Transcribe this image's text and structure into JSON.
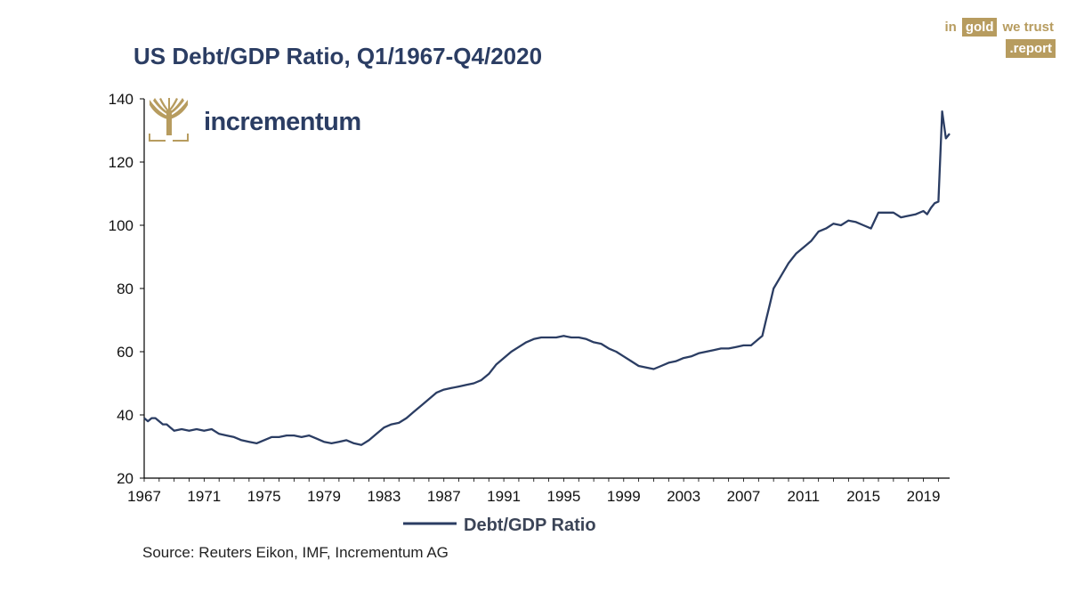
{
  "header": {
    "title": "US Debt/GDP Ratio, Q1/1967-Q4/2020"
  },
  "brand": {
    "word_in": "in",
    "word_gold": "gold",
    "word_we_trust": "we trust",
    "word_report": ".report",
    "color": "#b79c5f"
  },
  "logo": {
    "name": "incrementum",
    "icon": "tree-icon",
    "color": "#2b3d63",
    "icon_color": "#b79c5f"
  },
  "chart_data": {
    "type": "line",
    "title": "US Debt/GDP Ratio, Q1/1967-Q4/2020",
    "xlabel": "",
    "ylabel": "",
    "xlim": [
      1967,
      2020.75
    ],
    "ylim": [
      20,
      140
    ],
    "yticks": [
      20,
      40,
      60,
      80,
      100,
      120,
      140
    ],
    "xticks": [
      1967,
      1971,
      1975,
      1979,
      1983,
      1987,
      1991,
      1995,
      1999,
      2003,
      2007,
      2011,
      2015,
      2019
    ],
    "grid": false,
    "legend_position": "bottom-center",
    "series": [
      {
        "name": "Debt/GDP Ratio",
        "color": "#2b3d63",
        "x": [
          1967.0,
          1967.25,
          1967.5,
          1967.75,
          1968.0,
          1968.25,
          1968.5,
          1968.75,
          1969.0,
          1969.5,
          1970.0,
          1970.5,
          1971.0,
          1971.5,
          1972.0,
          1972.5,
          1973.0,
          1973.5,
          1974.0,
          1974.5,
          1975.0,
          1975.5,
          1976.0,
          1976.5,
          1977.0,
          1977.5,
          1978.0,
          1978.5,
          1979.0,
          1979.5,
          1980.0,
          1980.5,
          1981.0,
          1981.5,
          1982.0,
          1982.5,
          1983.0,
          1983.5,
          1984.0,
          1984.5,
          1985.0,
          1985.5,
          1986.0,
          1986.5,
          1987.0,
          1987.5,
          1988.0,
          1988.5,
          1989.0,
          1989.5,
          1990.0,
          1990.5,
          1991.0,
          1991.5,
          1992.0,
          1992.5,
          1993.0,
          1993.5,
          1994.0,
          1994.5,
          1995.0,
          1995.5,
          1996.0,
          1996.5,
          1997.0,
          1997.5,
          1998.0,
          1998.5,
          1999.0,
          1999.5,
          2000.0,
          2000.5,
          2001.0,
          2001.5,
          2002.0,
          2002.5,
          2003.0,
          2003.5,
          2004.0,
          2004.5,
          2005.0,
          2005.5,
          2006.0,
          2006.5,
          2007.0,
          2007.5,
          2008.0,
          2008.25,
          2008.5,
          2008.75,
          2009.0,
          2009.5,
          2010.0,
          2010.5,
          2011.0,
          2011.5,
          2012.0,
          2012.5,
          2013.0,
          2013.5,
          2014.0,
          2014.5,
          2015.0,
          2015.5,
          2016.0,
          2016.5,
          2017.0,
          2017.5,
          2018.0,
          2018.5,
          2019.0,
          2019.25,
          2019.5,
          2019.75,
          2020.0,
          2020.25,
          2020.5,
          2020.75
        ],
        "values": [
          39,
          38,
          39,
          39,
          38,
          37,
          37,
          36,
          35,
          35.5,
          35,
          35.5,
          35,
          35.5,
          34,
          33.5,
          33,
          32,
          31.5,
          31,
          32,
          33,
          33,
          33.5,
          33.5,
          33,
          33.5,
          32.5,
          31.5,
          31,
          31.5,
          32,
          31,
          30.5,
          32,
          34,
          36,
          37,
          37.5,
          39,
          41,
          43,
          45,
          47,
          48,
          48.5,
          49,
          49.5,
          50,
          51,
          53,
          56,
          58,
          60,
          61.5,
          63,
          64,
          64.5,
          64.5,
          64.5,
          65,
          64.5,
          64.5,
          64,
          63,
          62.5,
          61,
          60,
          58.5,
          57,
          55.5,
          55,
          54.5,
          55.5,
          56.5,
          57,
          58,
          58.5,
          59.5,
          60,
          60.5,
          61,
          61,
          61.5,
          62,
          62,
          64,
          65,
          70,
          75,
          80,
          84,
          88,
          91,
          93,
          95,
          98,
          99,
          100.5,
          100,
          101.5,
          101,
          100,
          99,
          104,
          104,
          104,
          102.5,
          103,
          103.5,
          104.5,
          103.5,
          105.5,
          107,
          107.5,
          136,
          127.5,
          129
        ]
      }
    ],
    "source": "Source: Reuters Eikon, IMF, Incrementum AG"
  }
}
